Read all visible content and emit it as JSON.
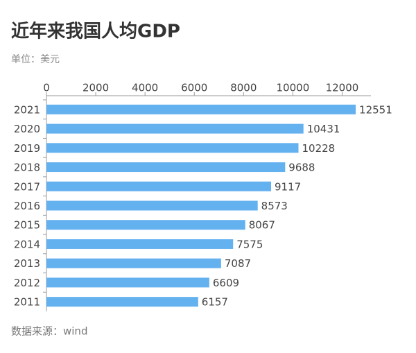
{
  "chart_data": {
    "type": "bar",
    "orientation": "horizontal",
    "title": "近年来我国人均GDP",
    "subtitle": "单位：美元",
    "source": "数据来源：wind",
    "categories": [
      "2021",
      "2020",
      "2019",
      "2018",
      "2017",
      "2016",
      "2015",
      "2014",
      "2013",
      "2012",
      "2011"
    ],
    "values": [
      12551,
      10431,
      10228,
      9688,
      9117,
      8573,
      8067,
      7575,
      7087,
      6609,
      6157
    ],
    "color": "#64b1f0",
    "xlim": [
      0,
      13000
    ],
    "xticks": [
      0,
      2000,
      4000,
      6000,
      8000,
      10000,
      12000
    ],
    "data_labels": true
  }
}
